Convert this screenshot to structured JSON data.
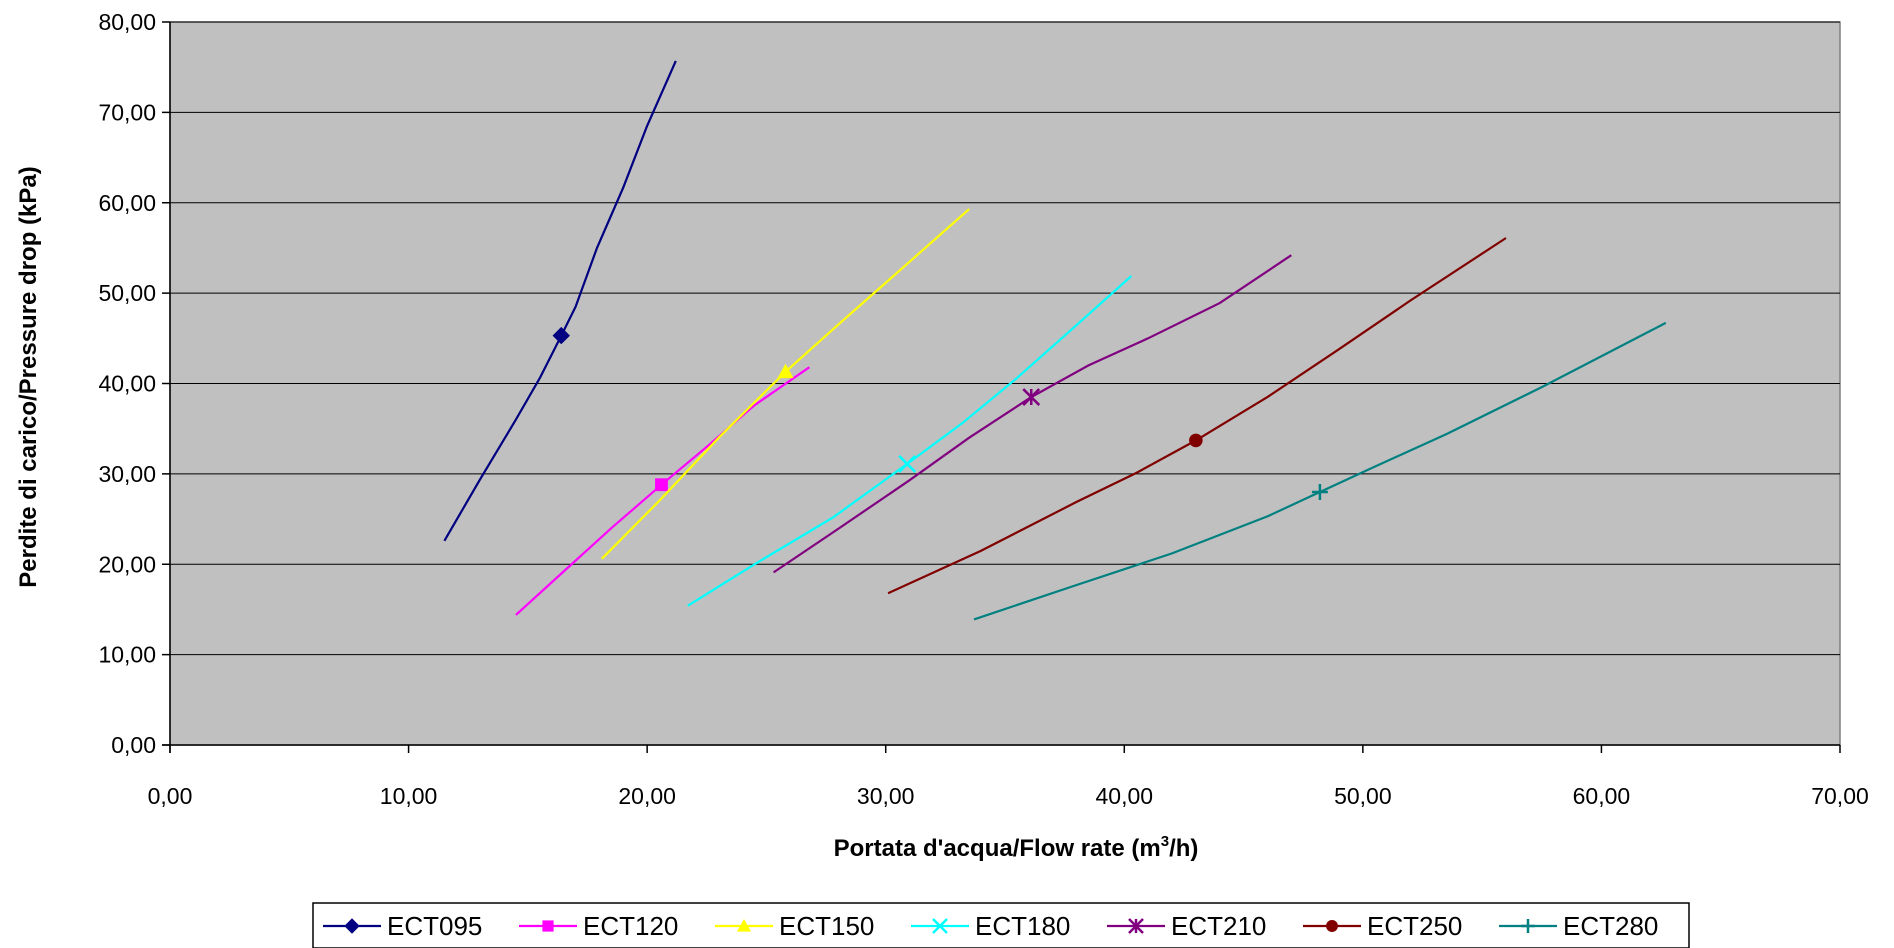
{
  "chart_data": {
    "type": "line",
    "xlabel": "Portata d'acqua/Flow rate (m",
    "xlabel_sup": "3",
    "xlabel_end": "/h)",
    "ylabel": "Perdite di carico/Pressure drop (kPa)",
    "xlim": [
      0,
      70
    ],
    "ylim": [
      0,
      80
    ],
    "x_ticks": [
      0,
      10,
      20,
      30,
      40,
      50,
      60,
      70
    ],
    "y_ticks": [
      0,
      10,
      20,
      30,
      40,
      50,
      60,
      70,
      80
    ],
    "x_tick_labels": [
      "0,00",
      "10,00",
      "20,00",
      "30,00",
      "40,00",
      "50,00",
      "60,00",
      "70,00"
    ],
    "y_tick_labels": [
      "0,00",
      "10,00",
      "20,00",
      "30,00",
      "40,00",
      "50,00",
      "60,00",
      "70,00",
      "80,00"
    ],
    "grid": "horizontal",
    "plot_background": "#c0c0c0",
    "legend_position": "bottom",
    "series": [
      {
        "name": "ECT095",
        "color": "#000080",
        "marker": "diamond",
        "x": [
          11.5,
          13.0,
          14.5,
          15.5,
          16.4,
          17.0,
          17.9,
          19.0,
          20.0,
          21.2
        ],
        "y": [
          22.6,
          29.4,
          36.0,
          40.6,
          45.3,
          48.5,
          55.0,
          61.7,
          68.5,
          75.7
        ],
        "marker_at": 4
      },
      {
        "name": "ECT120",
        "color": "#ff00ff",
        "marker": "square",
        "x": [
          14.5,
          16.5,
          18.5,
          20.6,
          22.5,
          24.5,
          26.8
        ],
        "y": [
          14.4,
          19.2,
          24.0,
          28.8,
          33.0,
          37.6,
          41.8
        ],
        "marker_at": 3
      },
      {
        "name": "ECT150",
        "color": "#ffff00",
        "marker": "triangle",
        "x": [
          18.1,
          20.5,
          23.0,
          25.8,
          28.0,
          30.5,
          33.5
        ],
        "y": [
          20.6,
          27.0,
          34.0,
          41.3,
          46.5,
          52.3,
          59.3
        ],
        "marker_at": 3
      },
      {
        "name": "ECT180",
        "color": "#00ffff",
        "marker": "x",
        "x": [
          21.7,
          24.5,
          27.8,
          30.9,
          33.2,
          35.5,
          37.8,
          40.3
        ],
        "y": [
          15.4,
          20.0,
          25.2,
          31.1,
          35.6,
          40.6,
          46.0,
          51.9
        ],
        "marker_at": 3
      },
      {
        "name": "ECT210",
        "color": "#800080",
        "marker": "asterisk",
        "x": [
          25.3,
          28.0,
          31.0,
          33.5,
          36.1,
          38.5,
          41.0,
          44.0,
          47.0
        ],
        "y": [
          19.1,
          23.9,
          29.3,
          34.0,
          38.5,
          42.0,
          45.0,
          48.9,
          54.2
        ],
        "marker_at": 4
      },
      {
        "name": "ECT250",
        "color": "#800000",
        "marker": "circle",
        "x": [
          30.1,
          34.0,
          38.0,
          40.5,
          43.0,
          46.0,
          49.0,
          52.0,
          56.0
        ],
        "y": [
          16.8,
          21.5,
          26.9,
          30.1,
          33.7,
          38.5,
          43.8,
          49.2,
          56.1
        ],
        "marker_at": 4
      },
      {
        "name": "ECT280",
        "color": "#008080",
        "marker": "plus",
        "x": [
          33.7,
          38.0,
          42.0,
          46.0,
          48.2,
          50.5,
          53.5,
          57.5,
          62.7
        ],
        "y": [
          13.9,
          17.7,
          21.2,
          25.3,
          28.0,
          30.8,
          34.4,
          39.6,
          46.7
        ],
        "marker_at": 4
      }
    ]
  }
}
